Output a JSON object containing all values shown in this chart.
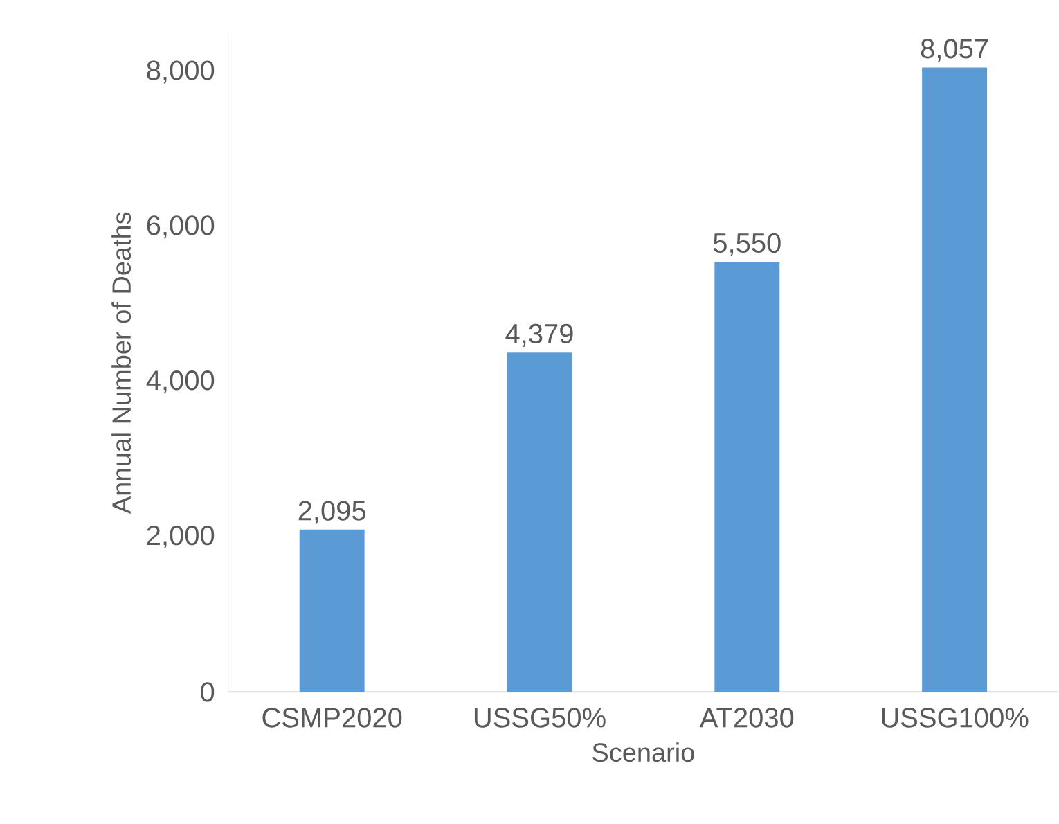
{
  "chart_data": {
    "type": "bar",
    "xlabel": "Scenario",
    "ylabel": "Annual Number of Deaths",
    "categories": [
      "CSMP2020",
      "USSG50%",
      "AT2030",
      "USSG100%"
    ],
    "values": [
      2095,
      4379,
      5550,
      8057
    ],
    "value_labels": [
      "2,095",
      "4,379",
      "5,550",
      "8,057"
    ],
    "color": "#5b9bd5",
    "ylim": [
      0,
      8500
    ],
    "yticks": [
      0,
      {
        "value": 2000,
        "label": "2,000"
      },
      {
        "value": 4000,
        "label": "4,000"
      },
      {
        "value": 6000,
        "label": "6,000"
      },
      {
        "value": 8000,
        "label": "8,000"
      }
    ]
  }
}
